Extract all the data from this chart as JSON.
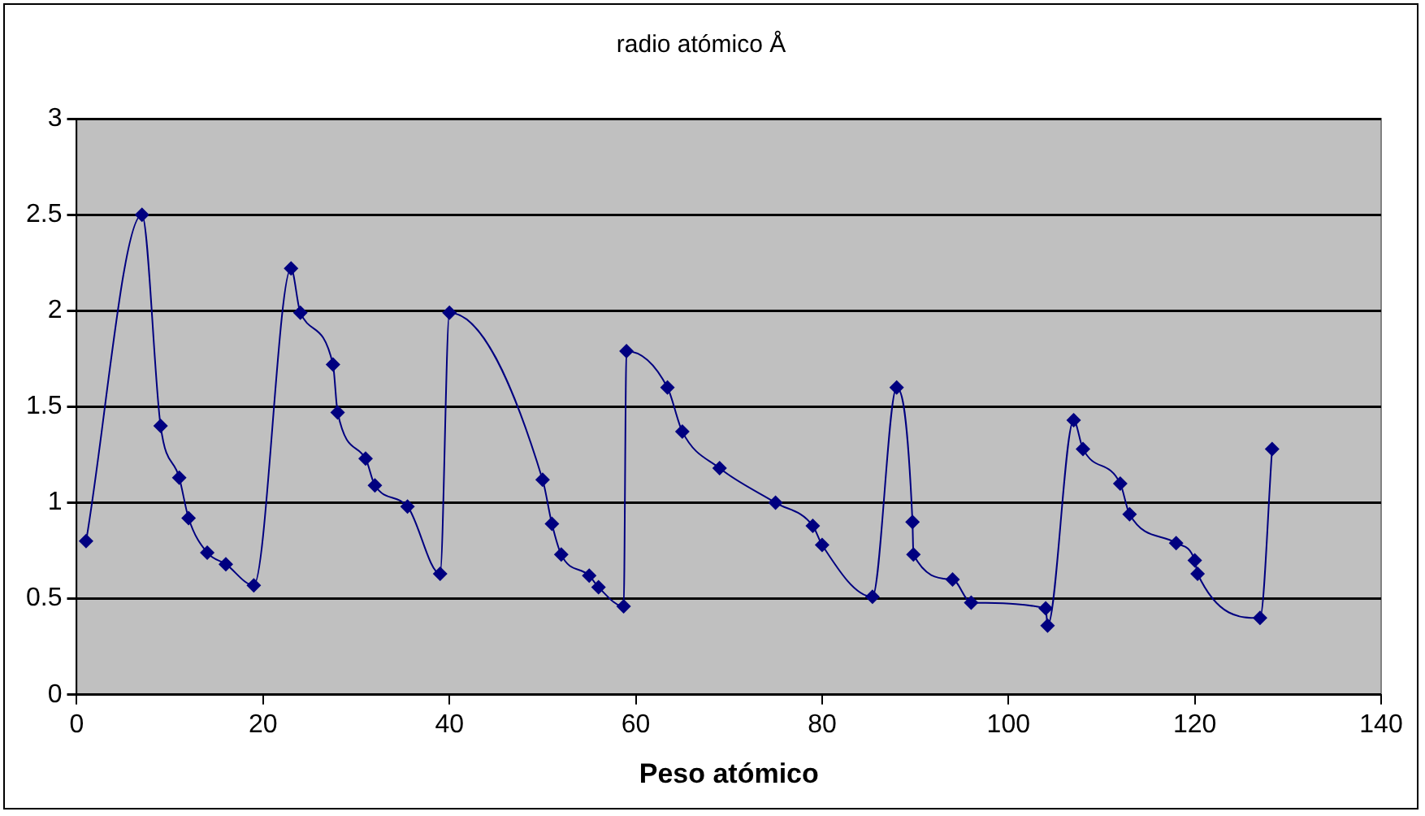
{
  "chart_data": {
    "type": "line",
    "title": "radio atómico Å",
    "xlabel": "Peso atómico",
    "x": [
      1,
      7,
      9,
      11,
      12,
      14,
      16,
      19,
      23,
      24,
      27.5,
      28,
      31,
      32,
      35.5,
      39,
      40,
      50,
      51,
      52,
      55,
      56,
      58.7,
      59,
      63.4,
      65,
      69,
      75,
      79,
      80,
      85.4,
      88,
      89.7,
      89.8,
      94,
      96,
      104,
      104.2,
      107,
      108,
      112,
      113,
      118,
      120,
      120.3,
      127,
      128.3
    ],
    "series": [
      {
        "color": "#000080",
        "values": [
          0.8,
          2.5,
          1.4,
          1.13,
          0.92,
          0.74,
          0.68,
          0.57,
          2.22,
          1.99,
          1.72,
          1.47,
          1.23,
          1.09,
          0.98,
          0.63,
          1.99,
          1.12,
          0.89,
          0.73,
          0.62,
          0.56,
          0.46,
          1.79,
          1.6,
          1.37,
          1.18,
          1.0,
          0.88,
          0.78,
          0.51,
          1.6,
          0.9,
          0.73,
          0.6,
          0.48,
          0.45,
          0.36,
          1.43,
          1.28,
          1.1,
          0.94,
          0.79,
          0.7,
          0.63,
          0.4,
          1.28
        ]
      }
    ],
    "xlim": [
      0,
      140
    ],
    "xticks": [
      0,
      20,
      40,
      60,
      80,
      100,
      120,
      140
    ],
    "ylim": [
      0,
      3
    ],
    "yticks": [
      0,
      0.5,
      1,
      1.5,
      2,
      2.5,
      3
    ],
    "grid": "y",
    "legend": false,
    "marker": "diamond",
    "line_style": "solid"
  }
}
